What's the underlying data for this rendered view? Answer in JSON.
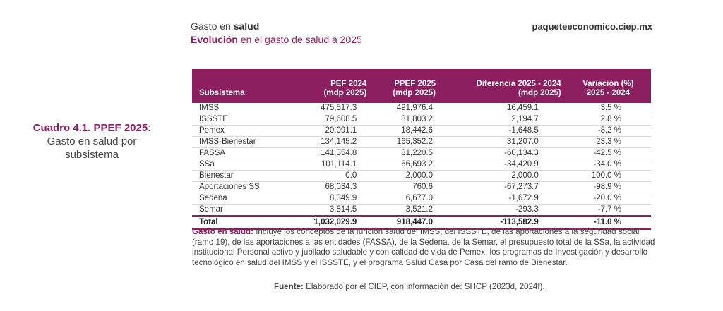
{
  "header": {
    "section_prefix": "Gasto en ",
    "section_bold": "salud",
    "subtitle_bold": "Evolución",
    "subtitle_rest": " en el gasto de salud a 2025",
    "site": "paqueteeconomico.ciep.mx"
  },
  "caption": {
    "label": "Cuadro 4.1. PPEF 2025",
    "colon": ":",
    "text": "Gasto en salud por subsistema"
  },
  "table": {
    "columns": [
      {
        "line1": "Subsistema",
        "line2": ""
      },
      {
        "line1": "PEF 2024",
        "line2": "(mdp 2025)"
      },
      {
        "line1": "PPEF 2025",
        "line2": "(mdp 2025)"
      },
      {
        "line1": "Diferencia 2025 - 2024",
        "line2": "(mdp 2025)"
      },
      {
        "line1": "Variación (%)",
        "line2": "2025 - 2024"
      }
    ],
    "rows": [
      [
        "IMSS",
        "475,517.3",
        "491,976.4",
        "16,459.1",
        "3.5 %"
      ],
      [
        "ISSSTE",
        "79,608.5",
        "81,803.2",
        "2,194.7",
        "2.8 %"
      ],
      [
        "Pemex",
        "20,091.1",
        "18,442.6",
        "-1,648.5",
        "-8.2 %"
      ],
      [
        "IMSS-Bienestar",
        "134,145.2",
        "165,352.2",
        "31,207.0",
        "23.3 %"
      ],
      [
        "FASSA",
        "141,354.8",
        "81,220.5",
        "-60,134.3",
        "-42.5 %"
      ],
      [
        "SSa",
        "101,114.1",
        "66,693.2",
        "-34,420.9",
        "-34.0 %"
      ],
      [
        "Bienestar",
        "0.0",
        "2,000.0",
        "2,000.0",
        "100.0 %"
      ],
      [
        "Aportaciones SS",
        "68,034.3",
        "760.6",
        "-67,273.7",
        "-98.9 %"
      ],
      [
        "Sedena",
        "8,349.9",
        "6,677.0",
        "-1,672.9",
        "-20.0 %"
      ],
      [
        "Semar",
        "3,814.5",
        "3,521.2",
        "-293.3",
        "-7.7 %"
      ]
    ],
    "total": [
      "Total",
      "1,032,029.9",
      "918,447.0",
      "-113,582.9",
      "-11.0 %"
    ]
  },
  "note": {
    "label": "Gasto en salud:",
    "text": " Incluye los conceptos de la función salud del IMSS, del ISSSTE, de las aportaciones a la seguridad social (ramo 19), de las aportaciones a las entidades (FASSA), de la Sedena, de la Semar, el presupuesto total de la SSa, la actividad institucional Personal activo y jubilado saludable y con calidad de vida de Pemex, los programas de Investigación y desarrollo tecnológico en salud del IMSS y el ISSSTE, y el programa Salud Casa por Casa del ramo de Bienestar."
  },
  "source": {
    "label": "Fuente:",
    "text": " Elaborado por el CIEP, con información de: SHCP (2023d, 2024f)."
  },
  "colors": {
    "accent": "#8c1f60"
  }
}
